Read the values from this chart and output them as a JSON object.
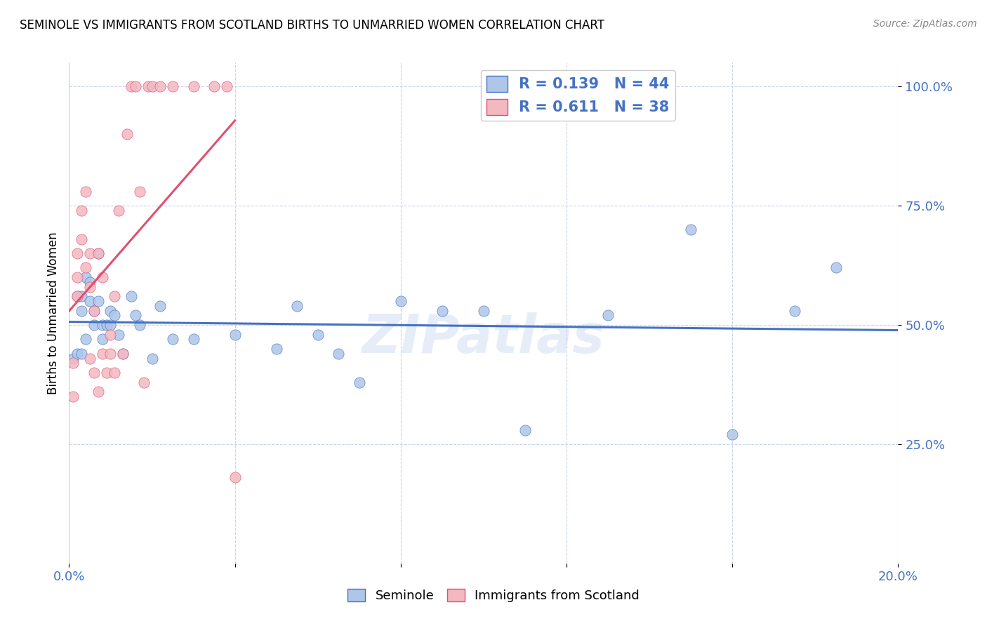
{
  "title": "SEMINOLE VS IMMIGRANTS FROM SCOTLAND BIRTHS TO UNMARRIED WOMEN CORRELATION CHART",
  "source": "Source: ZipAtlas.com",
  "ylabel": "Births to Unmarried Women",
  "x_min": 0.0,
  "x_max": 0.2,
  "y_min": 0.0,
  "y_max": 1.05,
  "x_ticks": [
    0.0,
    0.04,
    0.08,
    0.12,
    0.16,
    0.2
  ],
  "y_tick_positions": [
    0.25,
    0.5,
    0.75,
    1.0
  ],
  "y_tick_labels": [
    "25.0%",
    "50.0%",
    "75.0%",
    "100.0%"
  ],
  "seminole_color": "#aec6e8",
  "scotland_color": "#f4b8c1",
  "seminole_line_color": "#4472c4",
  "scotland_line_color": "#e05070",
  "R_seminole": 0.139,
  "N_seminole": 44,
  "R_scotland": 0.611,
  "N_scotland": 38,
  "legend_text_color": "#4472c4",
  "watermark": "ZIPatlas",
  "seminole_x": [
    0.001,
    0.002,
    0.002,
    0.003,
    0.003,
    0.003,
    0.004,
    0.004,
    0.005,
    0.005,
    0.006,
    0.006,
    0.007,
    0.007,
    0.008,
    0.008,
    0.009,
    0.01,
    0.01,
    0.011,
    0.012,
    0.013,
    0.015,
    0.016,
    0.017,
    0.02,
    0.022,
    0.025,
    0.03,
    0.04,
    0.05,
    0.055,
    0.06,
    0.065,
    0.07,
    0.08,
    0.09,
    0.1,
    0.11,
    0.13,
    0.15,
    0.16,
    0.175,
    0.185
  ],
  "seminole_y": [
    0.43,
    0.56,
    0.44,
    0.56,
    0.53,
    0.44,
    0.6,
    0.47,
    0.59,
    0.55,
    0.5,
    0.53,
    0.65,
    0.55,
    0.5,
    0.47,
    0.5,
    0.53,
    0.5,
    0.52,
    0.48,
    0.44,
    0.56,
    0.52,
    0.5,
    0.43,
    0.54,
    0.47,
    0.47,
    0.48,
    0.45,
    0.54,
    0.48,
    0.44,
    0.38,
    0.55,
    0.53,
    0.53,
    0.28,
    0.52,
    0.7,
    0.27,
    0.53,
    0.62
  ],
  "scotland_x": [
    0.001,
    0.001,
    0.002,
    0.002,
    0.002,
    0.003,
    0.003,
    0.004,
    0.004,
    0.005,
    0.005,
    0.005,
    0.006,
    0.006,
    0.007,
    0.007,
    0.008,
    0.008,
    0.009,
    0.01,
    0.01,
    0.011,
    0.011,
    0.012,
    0.013,
    0.014,
    0.015,
    0.016,
    0.017,
    0.018,
    0.019,
    0.02,
    0.022,
    0.025,
    0.03,
    0.035,
    0.038,
    0.04
  ],
  "scotland_y": [
    0.42,
    0.35,
    0.6,
    0.56,
    0.65,
    0.68,
    0.74,
    0.78,
    0.62,
    0.65,
    0.58,
    0.43,
    0.53,
    0.4,
    0.65,
    0.36,
    0.44,
    0.6,
    0.4,
    0.48,
    0.44,
    0.56,
    0.4,
    0.74,
    0.44,
    0.9,
    1.0,
    1.0,
    0.78,
    0.38,
    1.0,
    1.0,
    1.0,
    1.0,
    1.0,
    1.0,
    1.0,
    0.18
  ]
}
